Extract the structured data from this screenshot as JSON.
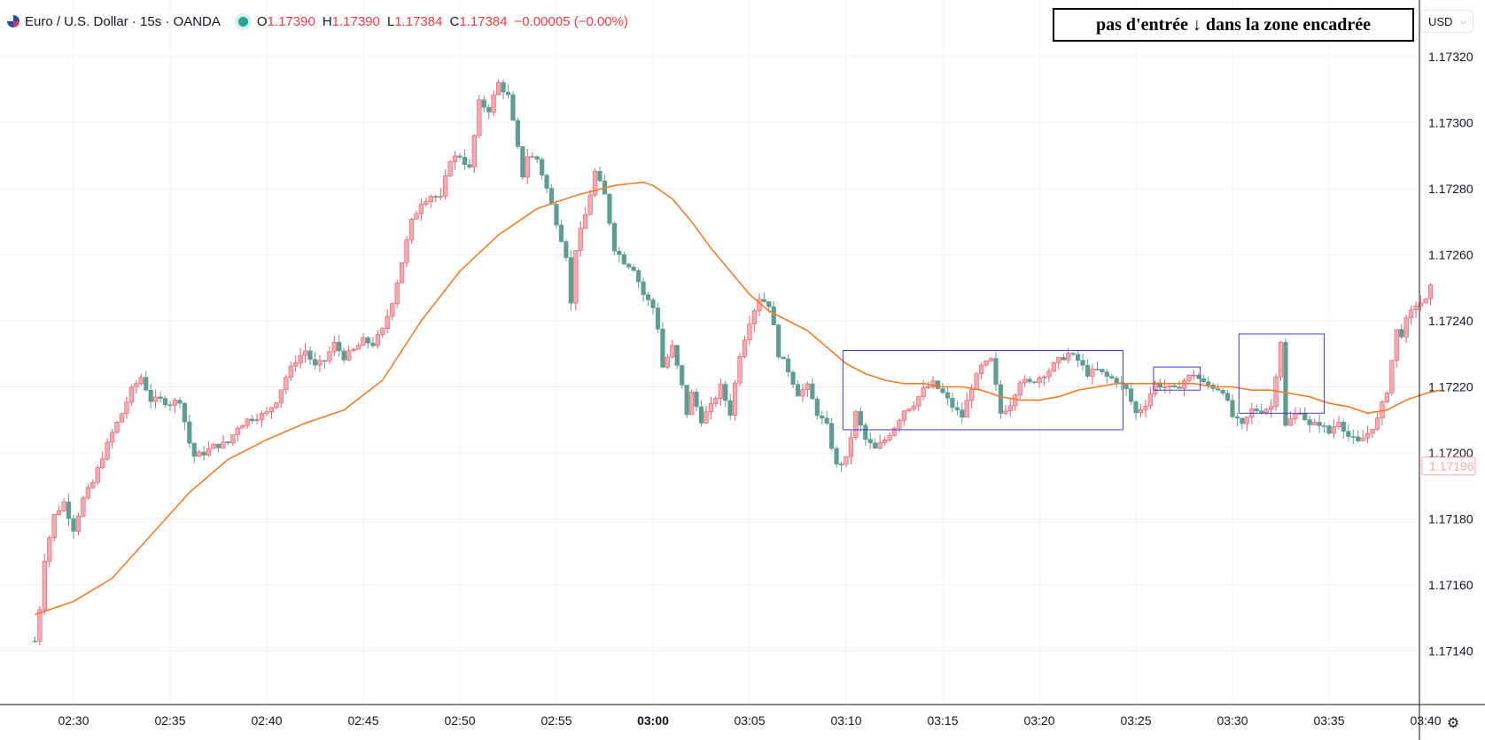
{
  "header": {
    "symbol": "Euro / U.S. Dollar · 15s · OANDA",
    "open_label": "O",
    "open": "1.17390",
    "high_label": "H",
    "high": "1.17390",
    "low_label": "L",
    "low": "1.17384",
    "close_label": "C",
    "close": "1.17384",
    "change": "−0.00005 (−0.00%)",
    "flag_icon": "eurusd-flag-icon",
    "status_icon": "market-open-dot-icon"
  },
  "annotation": {
    "note": "pas d'entrée ↓ dans la zone encadrée"
  },
  "currency_selector": {
    "value": "USD"
  },
  "settings": {
    "icon": "gear-icon"
  },
  "colors": {
    "up": "#f7a9b0",
    "up_border": "#e8596c",
    "down": "#5e9e92",
    "ma": "#f57c22",
    "box": "#3d3dd8",
    "last_price": "#f7a9b0"
  },
  "chart_data": {
    "type": "candlestick",
    "symbol": "EURUSD",
    "interval": "15s",
    "x_ticks": [
      "02:30",
      "02:35",
      "02:40",
      "02:45",
      "02:50",
      "02:55",
      "03:00",
      "03:05",
      "03:10",
      "03:15",
      "03:20",
      "03:25",
      "03:30",
      "03:35",
      "03:40"
    ],
    "y_ticks": [
      "1.17320",
      "1.17300",
      "1.17280",
      "1.17260",
      "1.17240",
      "1.17220",
      "1.17200",
      "1.17180",
      "1.17160",
      "1.17140"
    ],
    "ylim": [
      1.1713,
      1.1733
    ],
    "last_price": "1.17196",
    "grid": true,
    "close_path": [
      [
        "02:28:00",
        1.17143
      ],
      [
        "02:28:15",
        1.17153
      ],
      [
        "02:28:30",
        1.17168
      ],
      [
        "02:29:00",
        1.17181
      ],
      [
        "02:29:30",
        1.17185
      ],
      [
        "02:30:00",
        1.17177
      ],
      [
        "02:30:30",
        1.17186
      ],
      [
        "02:31:00",
        1.17191
      ],
      [
        "02:31:30",
        1.17199
      ],
      [
        "02:32:00",
        1.17206
      ],
      [
        "02:32:30",
        1.17212
      ],
      [
        "02:33:00",
        1.17219
      ],
      [
        "02:33:30",
        1.17223
      ],
      [
        "02:34:00",
        1.17216
      ],
      [
        "02:34:30",
        1.17216
      ],
      [
        "02:35:00",
        1.17215
      ],
      [
        "02:35:30",
        1.17216
      ],
      [
        "02:36:00",
        1.17203
      ],
      [
        "02:36:15",
        1.17199
      ],
      [
        "02:36:45",
        1.172
      ],
      [
        "02:37:15",
        1.17202
      ],
      [
        "02:38:00",
        1.17203
      ],
      [
        "02:38:30",
        1.17208
      ],
      [
        "02:39:00",
        1.1721
      ],
      [
        "02:40:00",
        1.17212
      ],
      [
        "02:40:30",
        1.17216
      ],
      [
        "02:41:00",
        1.17223
      ],
      [
        "02:41:30",
        1.17228
      ],
      [
        "02:42:00",
        1.17231
      ],
      [
        "02:42:30",
        1.17226
      ],
      [
        "02:43:00",
        1.17228
      ],
      [
        "02:43:30",
        1.17233
      ],
      [
        "02:44:00",
        1.17229
      ],
      [
        "02:44:30",
        1.17231
      ],
      [
        "02:45:00",
        1.17234
      ],
      [
        "02:45:30",
        1.17233
      ],
      [
        "02:46:00",
        1.17237
      ],
      [
        "02:46:30",
        1.17246
      ],
      [
        "02:47:00",
        1.17258
      ],
      [
        "02:47:30",
        1.1727
      ],
      [
        "02:48:00",
        1.17276
      ],
      [
        "02:48:30",
        1.17278
      ],
      [
        "02:49:00",
        1.17277
      ],
      [
        "02:49:30",
        1.17289
      ],
      [
        "02:50:00",
        1.1729
      ],
      [
        "02:50:30",
        1.17286
      ],
      [
        "02:51:00",
        1.17306
      ],
      [
        "02:51:30",
        1.17304
      ],
      [
        "02:52:00",
        1.17312
      ],
      [
        "02:52:15",
        1.1731
      ],
      [
        "02:52:30",
        1.17308
      ],
      [
        "02:52:45",
        1.173
      ],
      [
        "02:53:00",
        1.17292
      ],
      [
        "02:53:15",
        1.17284
      ],
      [
        "02:53:30",
        1.1729
      ],
      [
        "02:54:00",
        1.17289
      ],
      [
        "02:54:30",
        1.1728
      ],
      [
        "02:55:00",
        1.1727
      ],
      [
        "02:55:30",
        1.1726
      ],
      [
        "02:55:45",
        1.17245
      ],
      [
        "02:56:00",
        1.17262
      ],
      [
        "02:56:30",
        1.17272
      ],
      [
        "02:57:00",
        1.17285
      ],
      [
        "02:57:30",
        1.17278
      ],
      [
        "02:58:00",
        1.17262
      ],
      [
        "02:58:30",
        1.17258
      ],
      [
        "02:59:00",
        1.17256
      ],
      [
        "02:59:30",
        1.17248
      ],
      [
        "03:00:00",
        1.17244
      ],
      [
        "03:00:15",
        1.17238
      ],
      [
        "03:00:30",
        1.17226
      ],
      [
        "03:01:00",
        1.17232
      ],
      [
        "03:01:30",
        1.1722
      ],
      [
        "03:01:45",
        1.17212
      ],
      [
        "03:02:00",
        1.17218
      ],
      [
        "03:02:30",
        1.1721
      ],
      [
        "03:03:00",
        1.17214
      ],
      [
        "03:03:30",
        1.1722
      ],
      [
        "03:04:00",
        1.17212
      ],
      [
        "03:04:30",
        1.1723
      ],
      [
        "03:05:00",
        1.1724
      ],
      [
        "03:05:30",
        1.17247
      ],
      [
        "03:06:00",
        1.17245
      ],
      [
        "03:06:15",
        1.17238
      ],
      [
        "03:06:30",
        1.1723
      ],
      [
        "03:07:00",
        1.17225
      ],
      [
        "03:07:30",
        1.17218
      ],
      [
        "03:08:00",
        1.1722
      ],
      [
        "03:08:30",
        1.17212
      ],
      [
        "03:09:00",
        1.17208
      ],
      [
        "03:09:15",
        1.17202
      ],
      [
        "03:09:30",
        1.17196
      ],
      [
        "03:10:00",
        1.17198
      ],
      [
        "03:10:15",
        1.17205
      ],
      [
        "03:10:30",
        1.17212
      ],
      [
        "03:11:00",
        1.17204
      ],
      [
        "03:11:30",
        1.17201
      ],
      [
        "03:12:00",
        1.17204
      ],
      [
        "03:12:30",
        1.17208
      ],
      [
        "03:13:00",
        1.17213
      ],
      [
        "03:13:30",
        1.17215
      ],
      [
        "03:14:00",
        1.17219
      ],
      [
        "03:14:30",
        1.17221
      ],
      [
        "03:15:00",
        1.17218
      ],
      [
        "03:15:30",
        1.17214
      ],
      [
        "03:16:00",
        1.17211
      ],
      [
        "03:16:30",
        1.1722
      ],
      [
        "03:17:00",
        1.17226
      ],
      [
        "03:17:30",
        1.17228
      ],
      [
        "03:18:00",
        1.17212
      ],
      [
        "03:18:30",
        1.17215
      ],
      [
        "03:19:00",
        1.17222
      ],
      [
        "03:19:30",
        1.17221
      ],
      [
        "03:20:00",
        1.17223
      ],
      [
        "03:20:30",
        1.17225
      ],
      [
        "03:21:00",
        1.17228
      ],
      [
        "03:21:30",
        1.1723
      ],
      [
        "03:22:00",
        1.17228
      ],
      [
        "03:22:30",
        1.17224
      ],
      [
        "03:23:00",
        1.17225
      ],
      [
        "03:23:30",
        1.17223
      ],
      [
        "03:24:00",
        1.17222
      ],
      [
        "03:24:30",
        1.17219
      ],
      [
        "03:25:00",
        1.17212
      ],
      [
        "03:25:30",
        1.17215
      ],
      [
        "03:26:00",
        1.17221
      ],
      [
        "03:26:30",
        1.1722
      ],
      [
        "03:27:00",
        1.17219
      ],
      [
        "03:27:30",
        1.17222
      ],
      [
        "03:28:00",
        1.17224
      ],
      [
        "03:28:30",
        1.17221
      ],
      [
        "03:29:00",
        1.1722
      ],
      [
        "03:29:30",
        1.17219
      ],
      [
        "03:30:00",
        1.17211
      ],
      [
        "03:30:30",
        1.17208
      ],
      [
        "03:31:00",
        1.17213
      ],
      [
        "03:31:30",
        1.17213
      ],
      [
        "03:32:00",
        1.17214
      ],
      [
        "03:32:30",
        1.17234
      ],
      [
        "03:32:45",
        1.17208
      ],
      [
        "03:33:00",
        1.1721
      ],
      [
        "03:33:30",
        1.17213
      ],
      [
        "03:34:00",
        1.17208
      ],
      [
        "03:34:30",
        1.17209
      ],
      [
        "03:35:00",
        1.17206
      ],
      [
        "03:35:30",
        1.1721
      ],
      [
        "03:36:00",
        1.17205
      ],
      [
        "03:36:30",
        1.17203
      ],
      [
        "03:37:00",
        1.17206
      ],
      [
        "03:37:30",
        1.1721
      ],
      [
        "03:38:00",
        1.17219
      ],
      [
        "03:38:30",
        1.17237
      ],
      [
        "03:38:45",
        1.17236
      ],
      [
        "03:39:00",
        1.1724
      ],
      [
        "03:39:30",
        1.17245
      ],
      [
        "03:40:00",
        1.17246
      ],
      [
        "03:40:15",
        1.1725
      ]
    ],
    "moving_average": [
      [
        "02:28:00",
        1.17151
      ],
      [
        "02:30:00",
        1.17155
      ],
      [
        "02:32:00",
        1.17162
      ],
      [
        "02:34:00",
        1.17175
      ],
      [
        "02:36:00",
        1.17188
      ],
      [
        "02:38:00",
        1.17198
      ],
      [
        "02:40:00",
        1.17204
      ],
      [
        "02:42:00",
        1.17209
      ],
      [
        "02:44:00",
        1.17213
      ],
      [
        "02:46:00",
        1.17222
      ],
      [
        "02:48:00",
        1.1724
      ],
      [
        "02:50:00",
        1.17255
      ],
      [
        "02:52:00",
        1.17266
      ],
      [
        "02:54:00",
        1.17274
      ],
      [
        "02:56:00",
        1.17278
      ],
      [
        "02:58:00",
        1.17281
      ],
      [
        "02:59:30",
        1.17282
      ],
      [
        "03:00:00",
        1.17281
      ],
      [
        "03:01:00",
        1.17277
      ],
      [
        "03:02:00",
        1.1727
      ],
      [
        "03:03:00",
        1.17262
      ],
      [
        "03:04:00",
        1.17255
      ],
      [
        "03:05:00",
        1.17248
      ],
      [
        "03:06:00",
        1.17243
      ],
      [
        "03:07:00",
        1.1724
      ],
      [
        "03:08:00",
        1.17237
      ],
      [
        "03:09:00",
        1.17232
      ],
      [
        "03:10:00",
        1.17227
      ],
      [
        "03:11:00",
        1.17224
      ],
      [
        "03:12:00",
        1.17222
      ],
      [
        "03:13:00",
        1.17221
      ],
      [
        "03:14:00",
        1.17221
      ],
      [
        "03:15:00",
        1.1722
      ],
      [
        "03:16:00",
        1.1722
      ],
      [
        "03:17:00",
        1.17219
      ],
      [
        "03:18:00",
        1.17217
      ],
      [
        "03:19:00",
        1.17216
      ],
      [
        "03:20:00",
        1.17216
      ],
      [
        "03:21:00",
        1.17217
      ],
      [
        "03:22:00",
        1.17219
      ],
      [
        "03:23:00",
        1.1722
      ],
      [
        "03:24:00",
        1.17221
      ],
      [
        "03:25:00",
        1.17221
      ],
      [
        "03:26:00",
        1.17221
      ],
      [
        "03:27:00",
        1.17221
      ],
      [
        "03:28:00",
        1.17221
      ],
      [
        "03:29:00",
        1.1722
      ],
      [
        "03:30:00",
        1.1722
      ],
      [
        "03:31:00",
        1.17219
      ],
      [
        "03:32:00",
        1.17219
      ],
      [
        "03:33:00",
        1.17218
      ],
      [
        "03:34:00",
        1.17217
      ],
      [
        "03:35:00",
        1.17215
      ],
      [
        "03:36:00",
        1.17214
      ],
      [
        "03:37:00",
        1.17212
      ],
      [
        "03:38:00",
        1.17213
      ],
      [
        "03:39:00",
        1.17216
      ],
      [
        "03:40:00",
        1.17218
      ],
      [
        "03:40:45",
        1.17219
      ]
    ],
    "boxes": [
      {
        "t1": "03:09:50",
        "t2": "03:24:20",
        "p_top": 1.17231,
        "p_bottom": 1.17207
      },
      {
        "t1": "03:25:55",
        "t2": "03:28:20",
        "p_top": 1.17226,
        "p_bottom": 1.17219
      },
      {
        "t1": "03:30:20",
        "t2": "03:34:45",
        "p_top": 1.17236,
        "p_bottom": 1.17212
      }
    ]
  }
}
